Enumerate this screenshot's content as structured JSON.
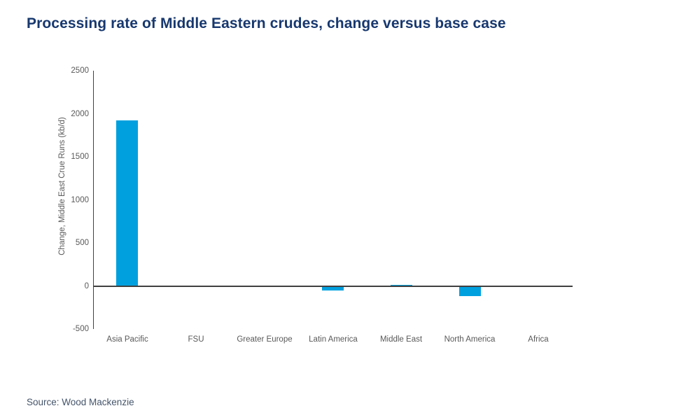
{
  "header": {
    "title": "Processing rate of Middle Eastern crudes, change versus base case",
    "title_color": "#17386f"
  },
  "footer": {
    "source": "Source: Wood Mackenzie",
    "source_color": "#44546a"
  },
  "chart_data": {
    "type": "bar",
    "title": "Processing rate of Middle Eastern crudes, change versus base case",
    "categories": [
      "Asia Pacific",
      "FSU",
      "Greater Europe",
      "Latin America",
      "Middle East",
      "North America",
      "Africa"
    ],
    "values": [
      1920,
      0,
      0,
      -45,
      15,
      -110,
      0
    ],
    "xlabel": "",
    "ylabel": "Change,  Middle East Crue  Runs  (kb/d)",
    "ylim": [
      -500,
      2500
    ],
    "yticks": [
      2500,
      2000,
      1500,
      1000,
      500,
      0,
      -500
    ],
    "grid": false,
    "legend": false,
    "bar_color": "#00a0df",
    "axis_color": "#404040",
    "tick_label_color": "#595959",
    "category_label_color": "#595959",
    "ylabel_color": "#595959"
  }
}
